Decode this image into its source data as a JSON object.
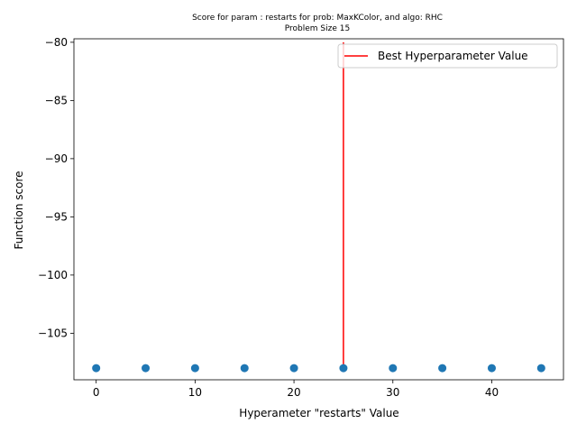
{
  "chart_data": {
    "type": "scatter",
    "title": "Score for param : restarts for prob: MaxKColor, and algo: RHC",
    "subtitle": "Problem Size 15",
    "xlabel": "Hyperameter \"restarts\" Value",
    "ylabel": "Function score",
    "xlim": [
      -2.25,
      47.25
    ],
    "ylim": [
      -109.0,
      -79.7
    ],
    "xticks": [
      0,
      10,
      20,
      30,
      40
    ],
    "yticks": [
      -105,
      -100,
      -95,
      -90,
      -85,
      -80
    ],
    "x_tick_labels": [
      "0",
      "10",
      "20",
      "30",
      "40"
    ],
    "y_tick_labels": [
      "−105",
      "−100",
      "−95",
      "−90",
      "−85",
      "−80"
    ],
    "series": [
      {
        "x": [
          0,
          5,
          10,
          15,
          20,
          25,
          30,
          35,
          40,
          45
        ],
        "y": [
          -108,
          -108,
          -108,
          -108,
          -108,
          -108,
          -108,
          -108,
          -108,
          -108
        ],
        "color": "#1f77b4"
      }
    ],
    "vline": {
      "name": "Best Hyperparameter Value",
      "x": 25,
      "y_range": [
        -108,
        -80
      ],
      "color": "#ff0000"
    },
    "legend": {
      "position": "top-right",
      "entries": [
        "Best Hyperparameter Value"
      ]
    },
    "grid": false
  }
}
